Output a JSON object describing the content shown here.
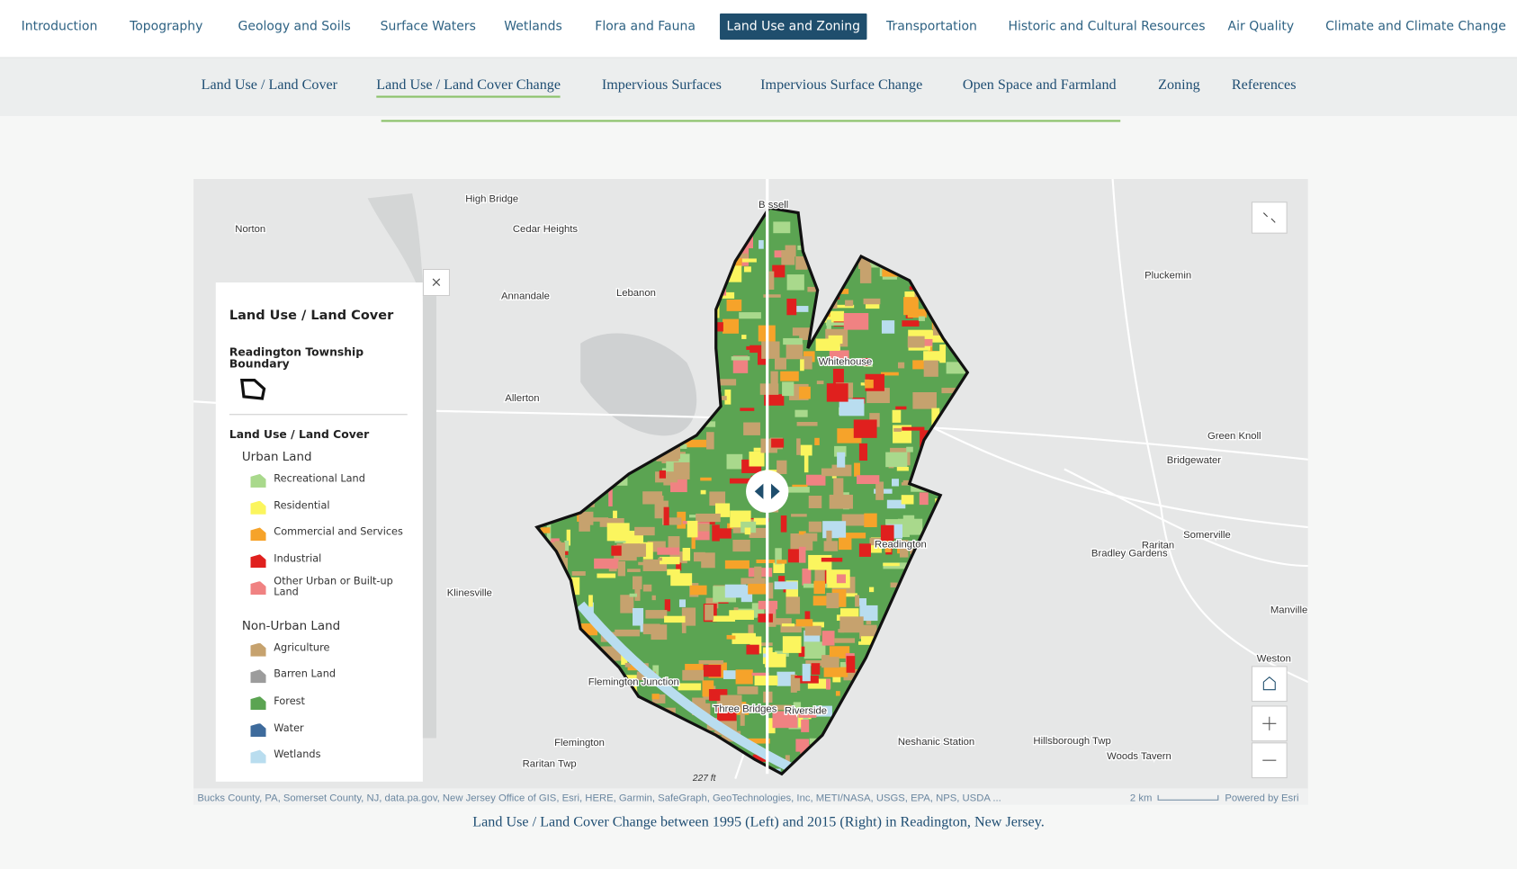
{
  "nav": {
    "items": [
      "Introduction",
      "Topography",
      "Geology and Soils",
      "Surface Waters",
      "Wetlands",
      "Flora and Fauna",
      "Land Use and Zoning",
      "Transportation",
      "Historic and Cultural Resources",
      "Air Quality",
      "Climate and Climate Change"
    ],
    "active": 6
  },
  "subnav": {
    "items": [
      "Land Use / Land Cover",
      "Land Use / Land Cover Change",
      "Impervious Surfaces",
      "Impervious Surface Change",
      "Open Space and Farmland",
      "Zoning",
      "References"
    ],
    "active": 1
  },
  "map": {
    "labels": [
      "High Bridge",
      "Cedar Heights",
      "Norton",
      "Annandale",
      "Lebanon",
      "Allerton",
      "Klinesville",
      "Flemington",
      "Raritan Twp",
      "Pluckemin",
      "Green Knoll",
      "Bridgewater",
      "Somerville",
      "Raritan",
      "Bradley Gardens",
      "Manville",
      "Weston",
      "Hillsborough Twp",
      "Woods Tavern",
      "Neshanic Station",
      "Whitehouse",
      "Readington",
      "Three Bridges",
      "Riverside",
      "Flemington Junction",
      "B ssell"
    ],
    "attribution": "Bucks County, PA, Somerset County, NJ, data.pa.gov, New Jersey Office of GIS, Esri, HERE, Garmin, SafeGraph, GeoTechnologies, Inc, METI/NASA, USGS, EPA, NPS, USDA ...",
    "scale": "2 km",
    "powered": "Powered by Esri",
    "elevation": "227 ft"
  },
  "legend": {
    "title": "Land Use / Land Cover",
    "boundary": "Readington Township Boundary",
    "layer": "Land Use / Land Cover",
    "groups": [
      {
        "name": "Urban Land",
        "items": [
          {
            "label": "Recreational Land",
            "color": "#a9d98c"
          },
          {
            "label": "Residential",
            "color": "#fbf55e"
          },
          {
            "label": "Commercial and Services",
            "color": "#f6a32a"
          },
          {
            "label": "Industrial",
            "color": "#e0201e"
          },
          {
            "label": "Other Urban or Built-up Land",
            "color": "#f08282"
          }
        ]
      },
      {
        "name": "Non-Urban Land",
        "items": [
          {
            "label": "Agriculture",
            "color": "#c6a26e"
          },
          {
            "label": "Barren Land",
            "color": "#9c9c9c"
          },
          {
            "label": "Forest",
            "color": "#5ba452"
          },
          {
            "label": "Water",
            "color": "#3e6b9c"
          },
          {
            "label": "Wetlands",
            "color": "#b9ddef"
          }
        ]
      }
    ]
  },
  "caption": "Land Use / Land Cover Change between 1995 (Left) and 2015 (Right) in Readington, New Jersey."
}
